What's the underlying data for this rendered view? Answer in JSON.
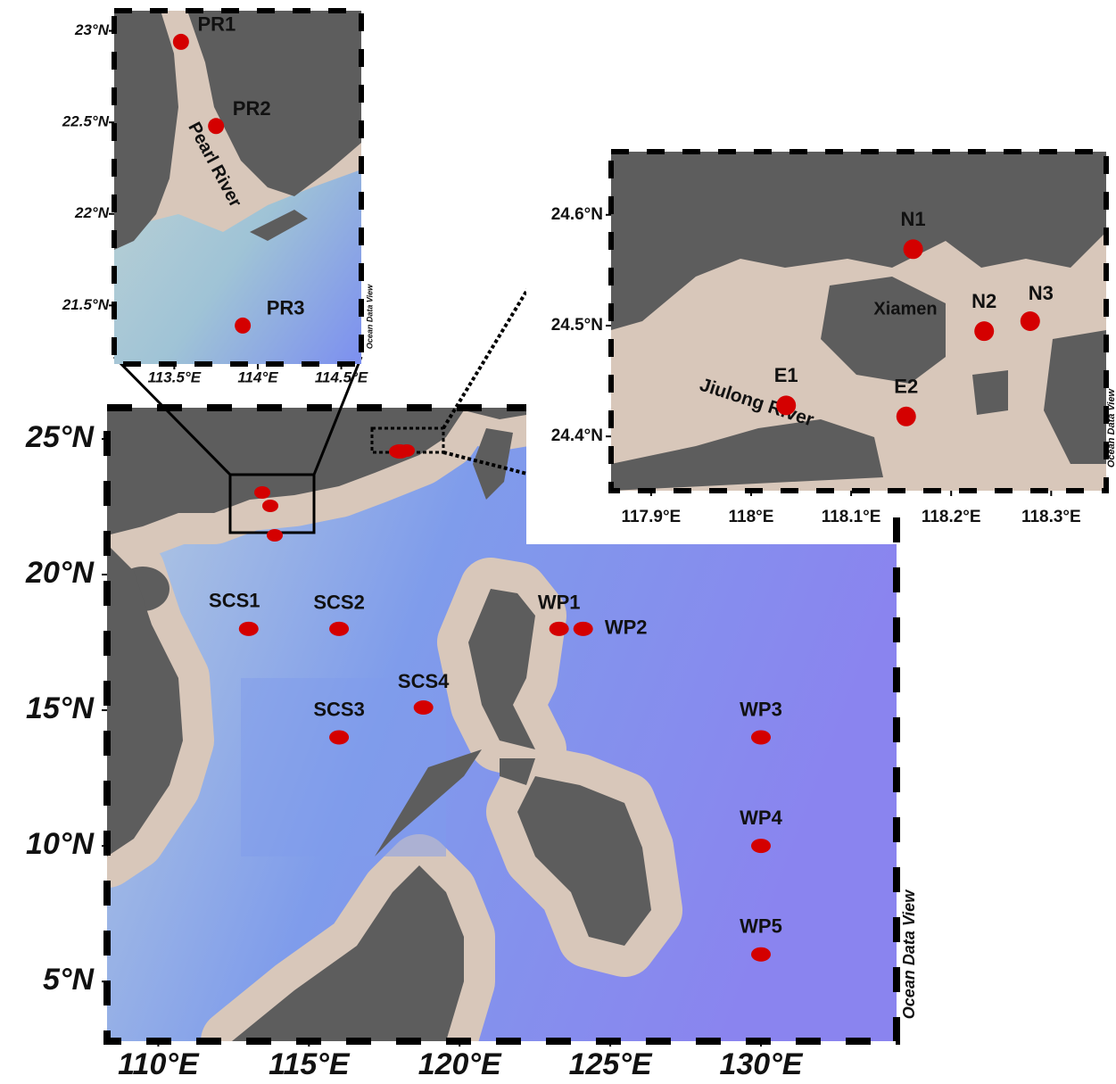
{
  "main_map": {
    "xlim": [
      108.3,
      134.5
    ],
    "ylim": [
      2.8,
      26.15
    ],
    "xticks": [
      {
        "value": 110,
        "label": "110°E"
      },
      {
        "value": 115,
        "label": "115°E"
      },
      {
        "value": 120,
        "label": "120°E"
      },
      {
        "value": 125,
        "label": "125°E"
      },
      {
        "value": 130,
        "label": "130°E"
      }
    ],
    "yticks": [
      {
        "value": 25,
        "label": "25°N"
      },
      {
        "value": 20,
        "label": "20°N"
      },
      {
        "value": 15,
        "label": "15°N"
      },
      {
        "value": 10,
        "label": "10°N"
      },
      {
        "value": 5,
        "label": "5°N"
      }
    ],
    "stations": [
      {
        "label": "SCS1",
        "lon": 113,
        "lat": 18
      },
      {
        "label": "SCS2",
        "lon": 116,
        "lat": 18
      },
      {
        "label": "SCS3",
        "lon": 116,
        "lat": 14
      },
      {
        "label": "SCS4",
        "lon": 118.8,
        "lat": 15.1
      },
      {
        "label": "WP1",
        "lon": 123.3,
        "lat": 18
      },
      {
        "label": "WP2",
        "lon": 124.1,
        "lat": 18
      },
      {
        "label": "WP3",
        "lon": 130,
        "lat": 14
      },
      {
        "label": "WP4",
        "lon": 130,
        "lat": 10
      },
      {
        "label": "WP5",
        "lon": 130,
        "lat": 6
      }
    ],
    "watermark": "Ocean Data View"
  },
  "pearl_inset": {
    "xlim": [
      113.14,
      114.62
    ],
    "ylim": [
      21.18,
      23.11
    ],
    "xticks": [
      {
        "value": 113.5,
        "label": "113.5°E"
      },
      {
        "value": 114,
        "label": "114°E"
      },
      {
        "value": 114.5,
        "label": "114.5°E"
      }
    ],
    "yticks": [
      {
        "value": 23,
        "label": "23°N"
      },
      {
        "value": 22.5,
        "label": "22.5°N"
      },
      {
        "value": 22,
        "label": "22°N"
      },
      {
        "value": 21.5,
        "label": "21.5°N"
      }
    ],
    "stations": [
      {
        "label": "PR1",
        "lon": 113.54,
        "lat": 22.94
      },
      {
        "label": "PR2",
        "lon": 113.75,
        "lat": 22.48
      },
      {
        "label": "PR3",
        "lon": 113.91,
        "lat": 21.39
      }
    ],
    "annotation": "Pearl River",
    "watermark": "Ocean Data View"
  },
  "xiamen_inset": {
    "xlim": [
      117.86,
      118.355
    ],
    "ylim": [
      24.351,
      24.657
    ],
    "xticks": [
      {
        "value": 117.9,
        "label": "117.9°E"
      },
      {
        "value": 118,
        "label": "118°E"
      },
      {
        "value": 118.1,
        "label": "118.1°E"
      },
      {
        "value": 118.2,
        "label": "118.2°E"
      },
      {
        "value": 118.3,
        "label": "118.3°E"
      }
    ],
    "yticks": [
      {
        "value": 24.6,
        "label": "24.6°N"
      },
      {
        "value": 24.5,
        "label": "24.5°N"
      },
      {
        "value": 24.4,
        "label": "24.4°N"
      }
    ],
    "stations": [
      {
        "label": "N1",
        "lon": 118.162,
        "lat": 24.569
      },
      {
        "label": "N2",
        "lon": 118.233,
        "lat": 24.495
      },
      {
        "label": "N3",
        "lon": 118.279,
        "lat": 24.504
      },
      {
        "label": "E1",
        "lon": 118.035,
        "lat": 24.428
      },
      {
        "label": "E2",
        "lon": 118.155,
        "lat": 24.418
      }
    ],
    "annotations": [
      "Xiamen",
      "Jiulong River"
    ],
    "watermark": "Ocean Data View"
  }
}
